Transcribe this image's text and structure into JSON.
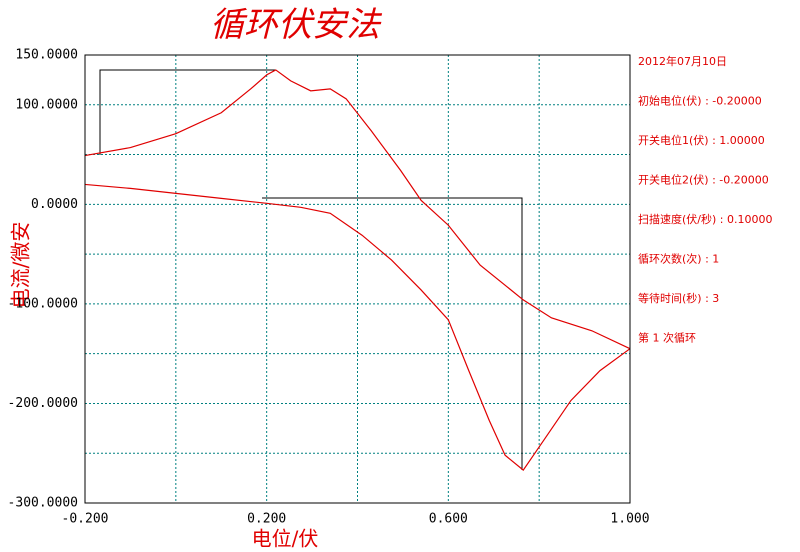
{
  "chart_data": {
    "type": "line",
    "title": "循环伏安法",
    "x_label": "电位/伏",
    "y_label": "电流/微安",
    "xlim": [
      -0.2,
      1.0
    ],
    "ylim": [
      -300,
      150
    ],
    "xticks": [
      {
        "value": -0.2,
        "label": "-0.200"
      },
      {
        "value": 0.2,
        "label": "0.200"
      },
      {
        "value": 0.6,
        "label": "0.600"
      },
      {
        "value": 1.0,
        "label": "1.000"
      }
    ],
    "yticks": [
      {
        "value": 150,
        "label": "150.0000"
      },
      {
        "value": 100,
        "label": "100.0000"
      },
      {
        "value": 0,
        "label": "0.0000"
      },
      {
        "value": -100,
        "label": "-100.0000"
      },
      {
        "value": -200,
        "label": "-200.0000"
      },
      {
        "value": -300,
        "label": "-300.0000"
      }
    ],
    "x_minor_grid": [
      0.0,
      0.4,
      0.8
    ],
    "y_minor_grid": [
      50,
      -50,
      -150,
      -250
    ],
    "grid": true,
    "grid_color": "#008080",
    "series": [
      {
        "color": "#e00000",
        "x": [
          -0.2,
          -0.1,
          0.0,
          0.1,
          0.165,
          0.2,
          0.22,
          0.253,
          0.297,
          0.34,
          0.375,
          0.43,
          0.495,
          0.54,
          0.6,
          0.67,
          0.765,
          0.827,
          0.916,
          1.0
        ],
        "values": [
          49,
          57,
          71,
          92,
          116,
          130,
          135,
          124,
          114,
          116,
          106,
          74,
          34,
          4,
          -21,
          -61,
          -96,
          -114,
          -127,
          -145
        ]
      },
      {
        "color": "#e00000",
        "x": [
          1.0,
          0.934,
          0.87,
          0.81,
          0.765,
          0.725,
          0.69,
          0.645,
          0.6,
          0.54,
          0.475,
          0.41,
          0.34,
          0.275,
          0.2,
          0.1,
          0.0,
          -0.1,
          -0.2
        ],
        "values": [
          -145,
          -167,
          -197,
          -237,
          -267,
          -252,
          -217,
          -167,
          -116,
          -86,
          -56,
          -31,
          -9,
          -3,
          1,
          6,
          11,
          16,
          20
        ]
      }
    ],
    "info": [
      "2012年07月10日",
      "初始电位(伏) : -0.20000",
      "开关电位1(伏) : 1.00000",
      "开关电位2(伏) : -0.20000",
      "扫描速度(伏/秒) : 0.10000",
      "循环次数(次) : 1",
      "等待时间(秒) : 3",
      "第 1 次循环"
    ]
  }
}
